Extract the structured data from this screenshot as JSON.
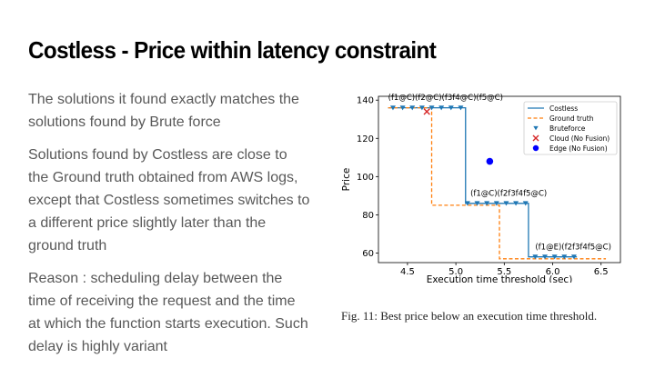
{
  "slide": {
    "title": "Costless - Price within latency constraint",
    "paragraphs": [
      "The solutions it found exactly matches the solutions found by Brute force",
      "Solutions found by Costless are close to the Ground truth obtained from AWS logs, except that Costless sometimes switches to a different price slightly later than the ground truth",
      "Reason : scheduling delay between the time of receiving the request and the time at which the function starts execution. Such delay is highly variant"
    ],
    "caption": "Fig. 11: Best price below an execution time threshold."
  },
  "chart_data": {
    "type": "line",
    "xlabel": "Execution time threshold (sec)",
    "ylabel": "Price",
    "xlim": [
      4.2,
      6.7
    ],
    "ylim": [
      55,
      142
    ],
    "xticks": [
      4.5,
      5.0,
      5.5,
      6.0,
      6.5
    ],
    "yticks": [
      60,
      80,
      100,
      120,
      140
    ],
    "grid": false,
    "legend_position": "top-right",
    "series": [
      {
        "name": "Costless",
        "style": "solid",
        "color": "#1f77b4",
        "x": [
          4.3,
          5.1,
          5.1,
          5.75,
          5.75,
          6.25
        ],
        "y": [
          136,
          136,
          86,
          86,
          58,
          58
        ]
      },
      {
        "name": "Ground truth",
        "style": "dashed",
        "color": "#ff7f0e",
        "x": [
          4.3,
          4.75,
          4.75,
          5.45,
          5.45,
          6.55
        ],
        "y": [
          136,
          136,
          85,
          85,
          57,
          57
        ]
      },
      {
        "name": "Bruteforce",
        "marker": "triangle-down",
        "color": "#1f77b4",
        "x": [
          4.35,
          4.45,
          4.55,
          4.65,
          4.75,
          4.85,
          4.95,
          5.05,
          5.12,
          5.22,
          5.32,
          5.42,
          5.52,
          5.62,
          5.72,
          5.82,
          5.92,
          6.02,
          6.12,
          6.22
        ],
        "y": [
          136,
          136,
          136,
          136,
          136,
          136,
          136,
          136,
          86,
          86,
          86,
          86,
          86,
          86,
          86,
          58,
          58,
          58,
          58,
          58
        ]
      },
      {
        "name": "Cloud (No Fusion)",
        "marker": "x",
        "color": "#d62728",
        "x": [
          4.7
        ],
        "y": [
          134
        ]
      },
      {
        "name": "Edge (No Fusion)",
        "marker": "circle",
        "color": "#0000ff",
        "x": [
          5.35
        ],
        "y": [
          108
        ]
      }
    ],
    "annotations": [
      {
        "text": "(f1@C)(f2@C)(f3f4@C)(f5@C)",
        "x": 4.3,
        "y": 140
      },
      {
        "text": "(f1@C)(f2f3f4f5@C)",
        "x": 5.15,
        "y": 90
      },
      {
        "text": "(f1@E)(f2f3f4f5@C)",
        "x": 5.82,
        "y": 62
      }
    ]
  }
}
